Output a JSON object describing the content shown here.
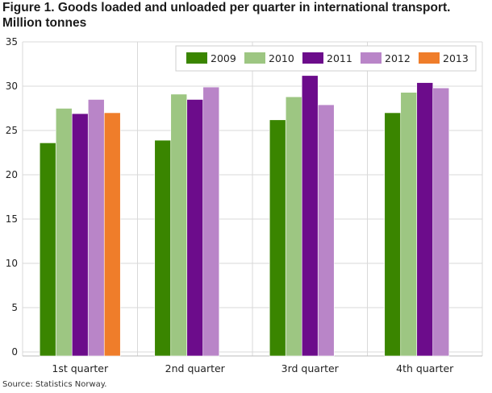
{
  "chart_data": {
    "type": "bar",
    "title": "Figure 1. Goods loaded and unloaded per quarter in international transport.",
    "subtitle": "Million tonnes",
    "xlabel": "",
    "ylabel": "",
    "ylim": [
      0,
      35
    ],
    "yticks": [
      0,
      5,
      10,
      15,
      20,
      25,
      30,
      35
    ],
    "grid": true,
    "legend_position": "top-right",
    "categories": [
      "1st quarter",
      "2nd quarter",
      "3rd quarter",
      "4th quarter"
    ],
    "series": [
      {
        "name": "2009",
        "color": "#3a8500",
        "values": [
          23.6,
          23.9,
          26.2,
          27.0
        ]
      },
      {
        "name": "2010",
        "color": "#9dc682",
        "values": [
          27.5,
          29.1,
          28.8,
          29.3
        ]
      },
      {
        "name": "2011",
        "color": "#6c0c8b",
        "values": [
          26.9,
          28.5,
          31.2,
          30.4
        ]
      },
      {
        "name": "2012",
        "color": "#b985c8",
        "values": [
          28.5,
          29.9,
          27.9,
          29.8
        ]
      },
      {
        "name": "2013",
        "color": "#ef7d2a",
        "values": [
          27.0,
          null,
          null,
          null
        ]
      }
    ],
    "source": "Source: Statistics Norway."
  }
}
